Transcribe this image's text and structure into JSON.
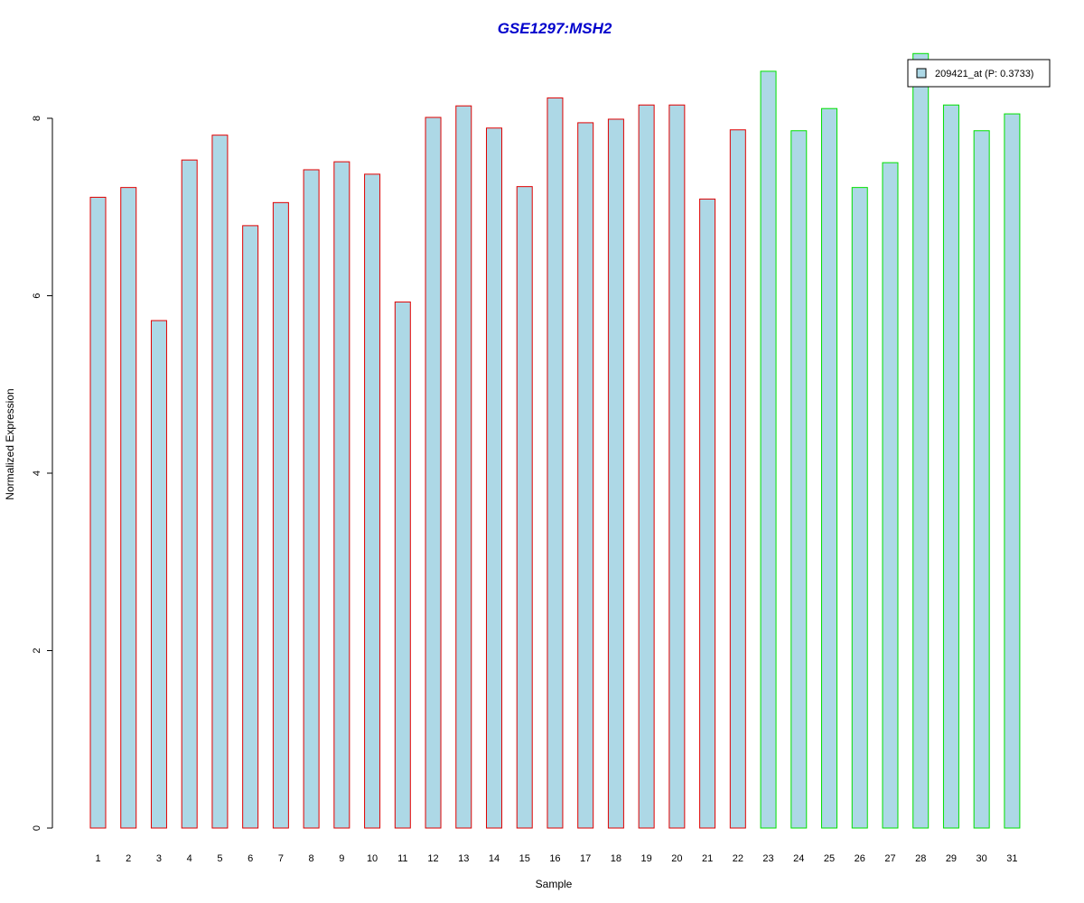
{
  "colors": {
    "title": "#0000cc",
    "bar_fill": "#add8e6",
    "group1_border": "#e00000",
    "group2_border": "#00e000",
    "axis": "#000000"
  },
  "chart_data": {
    "type": "bar",
    "title": "GSE1297:MSH2",
    "xlabel": "Sample",
    "ylabel": "Normalized Expression",
    "ylim": [
      0,
      8.9
    ],
    "yticks": [
      "0",
      "2",
      "4",
      "6",
      "8"
    ],
    "categories": [
      "1",
      "2",
      "3",
      "4",
      "5",
      "6",
      "7",
      "8",
      "9",
      "10",
      "11",
      "12",
      "13",
      "14",
      "15",
      "16",
      "17",
      "18",
      "19",
      "20",
      "21",
      "22",
      "23",
      "24",
      "25",
      "26",
      "27",
      "28",
      "29",
      "30",
      "31"
    ],
    "series": [
      {
        "name": "209421_at (P: 0.3733)",
        "values": [
          7.11,
          7.22,
          5.72,
          7.53,
          7.81,
          6.79,
          7.05,
          7.42,
          7.51,
          7.37,
          5.93,
          8.01,
          8.14,
          7.89,
          7.23,
          8.23,
          7.95,
          7.99,
          8.15,
          8.15,
          7.09,
          7.87,
          8.53,
          7.86,
          8.11,
          7.22,
          7.5,
          8.73,
          8.15,
          7.86,
          8.05
        ],
        "border_groups": [
          1,
          1,
          1,
          1,
          1,
          1,
          1,
          1,
          1,
          1,
          1,
          1,
          1,
          1,
          1,
          1,
          1,
          1,
          1,
          1,
          1,
          1,
          2,
          2,
          2,
          2,
          2,
          2,
          2,
          2,
          2
        ]
      }
    ],
    "legend": {
      "position": "top-right",
      "label": "209421_at (P: 0.3733)"
    },
    "grid": false
  }
}
